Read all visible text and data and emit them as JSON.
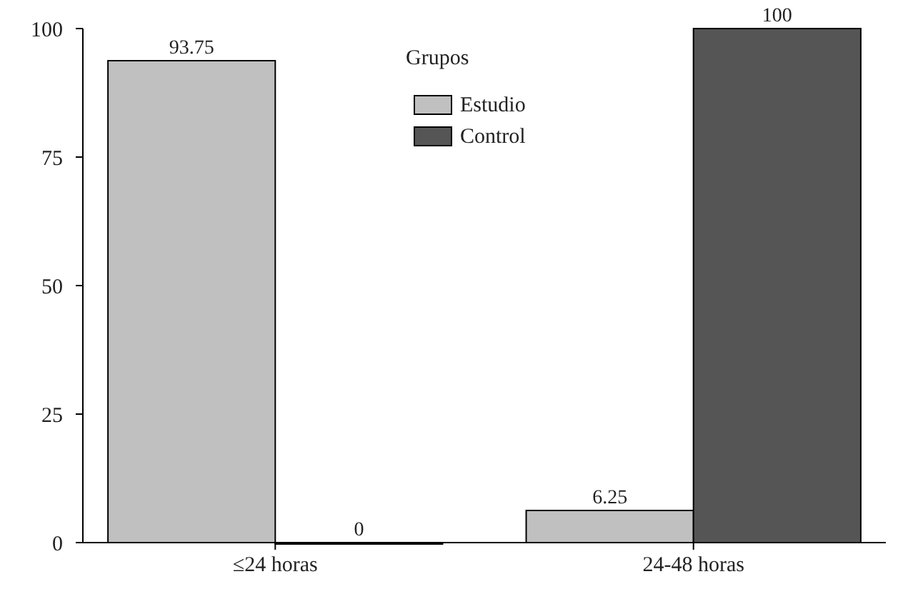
{
  "chart_data": {
    "type": "bar",
    "categories": [
      "≤24 horas",
      "24-48 horas"
    ],
    "series": [
      {
        "name": "Estudio",
        "color": "#c0c0c0",
        "values": [
          93.75,
          6.25
        ]
      },
      {
        "name": "Control",
        "color": "#555555",
        "values": [
          0,
          100
        ]
      }
    ],
    "ylim": [
      0,
      100
    ],
    "yticks": [
      0,
      25,
      50,
      75,
      100
    ],
    "legend_title": "Grupos",
    "legend": "top",
    "data_labels": true,
    "grid": false
  }
}
